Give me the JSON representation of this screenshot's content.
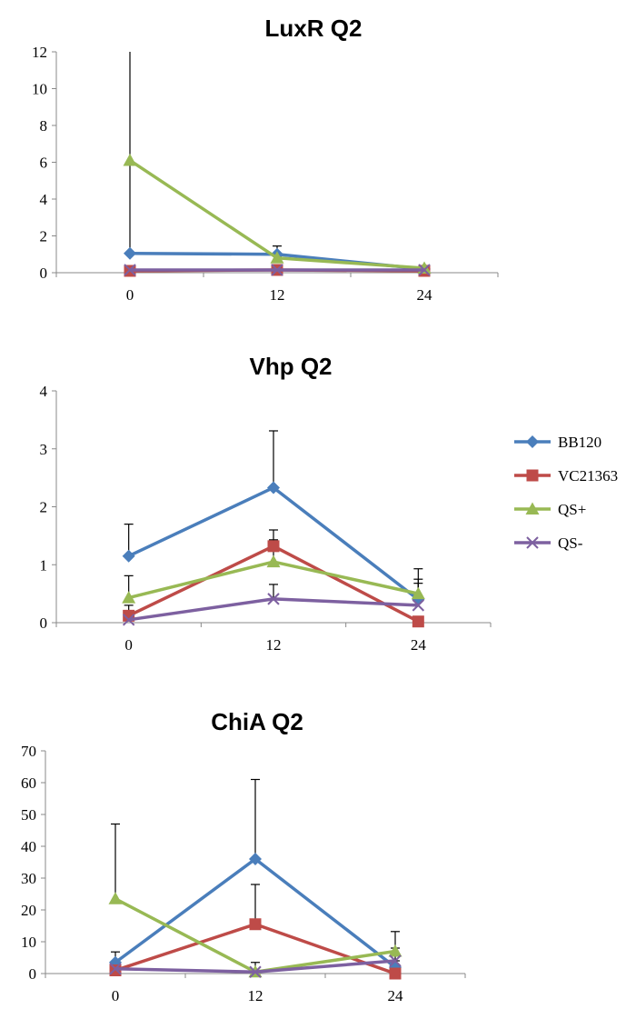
{
  "chart_data": [
    {
      "type": "line",
      "title": "LuxR Q2",
      "xlabel": "",
      "ylabel": "",
      "categories": [
        "0",
        "12",
        "24"
      ],
      "ylim": [
        0,
        12
      ],
      "yticks": [
        0,
        2,
        4,
        6,
        8,
        10,
        12
      ],
      "series": [
        {
          "name": "BB120",
          "values": [
            1.05,
            1.0,
            0.2
          ],
          "err_up": [
            11.5,
            0.45,
            0.1
          ]
        },
        {
          "name": "VC21363",
          "values": [
            0.1,
            0.15,
            0.1
          ],
          "err_up": [
            0.2,
            0.2,
            0.1
          ]
        },
        {
          "name": "QS+",
          "values": [
            6.1,
            0.8,
            0.25
          ],
          "err_up": [
            0,
            0.1,
            0.05
          ]
        },
        {
          "name": "QS-",
          "values": [
            0.15,
            0.15,
            0.15
          ],
          "err_up": [
            0.05,
            0.05,
            0.05
          ]
        }
      ]
    },
    {
      "type": "line",
      "title": "Vhp Q2",
      "xlabel": "",
      "ylabel": "",
      "categories": [
        "0",
        "12",
        "24"
      ],
      "ylim": [
        0,
        4
      ],
      "yticks": [
        0,
        1,
        2,
        3,
        4
      ],
      "series": [
        {
          "name": "BB120",
          "values": [
            1.15,
            2.33,
            0.4
          ],
          "err_up": [
            0.55,
            0.98,
            0.35
          ]
        },
        {
          "name": "VC21363",
          "values": [
            0.12,
            1.32,
            0.02
          ],
          "err_up": [
            0.18,
            0.28,
            0.05
          ]
        },
        {
          "name": "QS+",
          "values": [
            0.43,
            1.05,
            0.5
          ],
          "err_up": [
            0.38,
            0.38,
            0.43
          ]
        },
        {
          "name": "QS-",
          "values": [
            0.05,
            0.41,
            0.3
          ],
          "err_up": [
            0.02,
            0.25,
            0.38
          ]
        }
      ]
    },
    {
      "type": "line",
      "title": "ChiA Q2",
      "xlabel": "",
      "ylabel": "",
      "categories": [
        "0",
        "12",
        "24"
      ],
      "ylim": [
        0,
        70
      ],
      "yticks": [
        0,
        10,
        20,
        30,
        40,
        50,
        60,
        70
      ],
      "series": [
        {
          "name": "BB120",
          "values": [
            3.5,
            36,
            2
          ],
          "err_up": [
            3.3,
            25,
            2
          ]
        },
        {
          "name": "VC21363",
          "values": [
            1,
            15.5,
            0
          ],
          "err_up": [
            1,
            12.5,
            1
          ]
        },
        {
          "name": "QS+",
          "values": [
            23.5,
            0.5,
            7
          ],
          "err_up": [
            23.5,
            3,
            6.2
          ]
        },
        {
          "name": "QS-",
          "values": [
            1.5,
            0.5,
            4
          ],
          "err_up": [
            0.5,
            0.5,
            4
          ]
        }
      ]
    }
  ],
  "legend": {
    "placement": "right",
    "items": [
      {
        "label": "BB120",
        "color": "#4a7ebb",
        "marker": "diamond"
      },
      {
        "label": "VC21363",
        "color": "#be4b48",
        "marker": "square"
      },
      {
        "label": "QS+",
        "color": "#98b954",
        "marker": "triangle"
      },
      {
        "label": "QS-",
        "color": "#7d60a0",
        "marker": "x"
      }
    ]
  }
}
